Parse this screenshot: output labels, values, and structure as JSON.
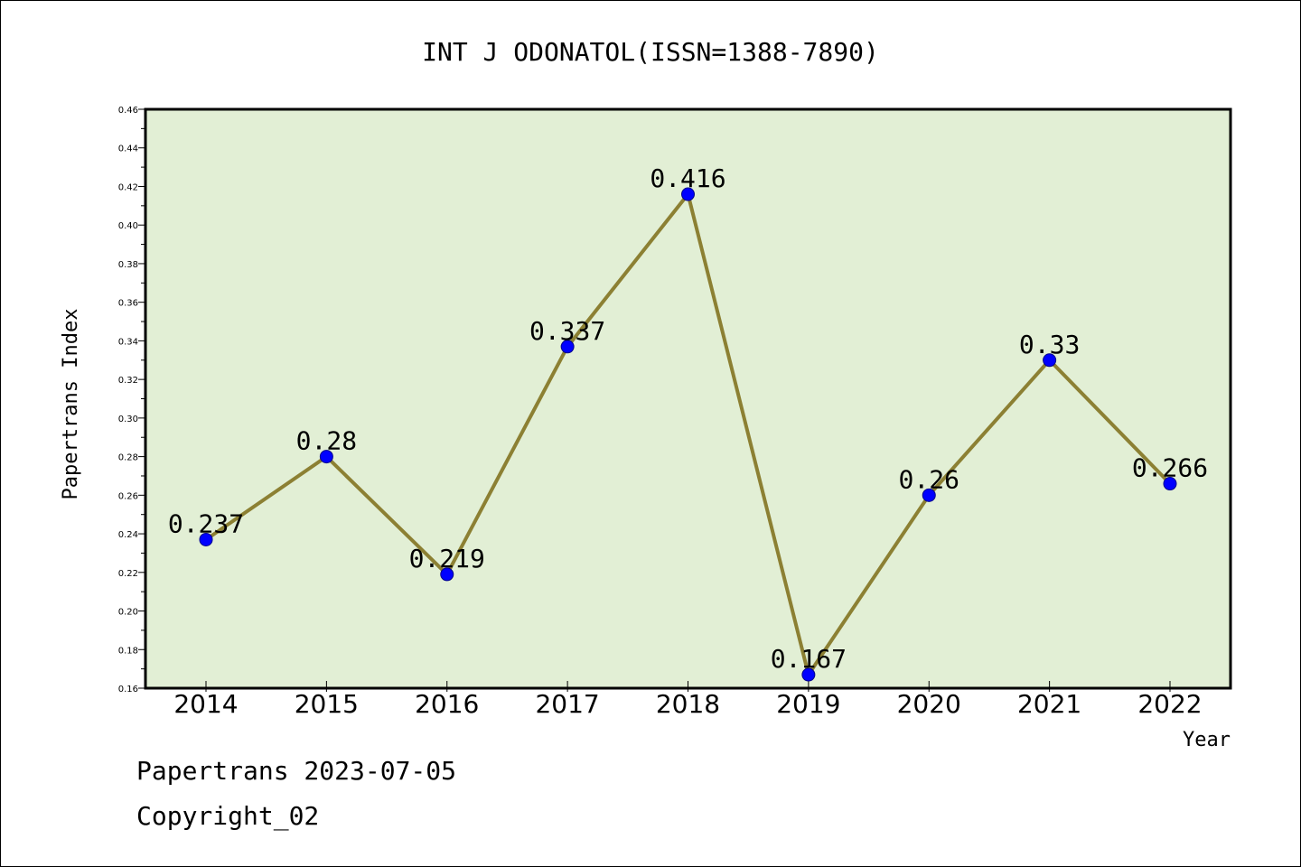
{
  "chart_data": {
    "type": "line",
    "title": "INT J ODONATOL(ISSN=1388-7890)",
    "xlabel": "Year",
    "ylabel": "Papertrans Index",
    "categories": [
      "2014",
      "2015",
      "2016",
      "2017",
      "2018",
      "2019",
      "2020",
      "2021",
      "2022"
    ],
    "series": [
      {
        "values": [
          0.237,
          0.28,
          0.219,
          0.337,
          0.416,
          0.167,
          0.26,
          0.33,
          0.266
        ],
        "data_labels": [
          "0.237",
          "0.28",
          "0.219",
          "0.337",
          "0.416",
          "0.167",
          "0.26",
          "0.33",
          "0.266"
        ]
      }
    ],
    "ylim": [
      0.16,
      0.46
    ],
    "yticks": [
      "0.16",
      "0.18",
      "0.20",
      "0.22",
      "0.24",
      "0.26",
      "0.28",
      "0.30",
      "0.32",
      "0.34",
      "0.36",
      "0.38",
      "0.40",
      "0.42",
      "0.44",
      "0.46"
    ],
    "grid": false,
    "legend": "none"
  },
  "colors": {
    "plot_background": "#e2efd5",
    "line": "#8c8033",
    "marker": "#0000ff"
  },
  "footer": {
    "date_text": "Papertrans 2023-07-05",
    "copyright_text": "Copyright_02"
  }
}
